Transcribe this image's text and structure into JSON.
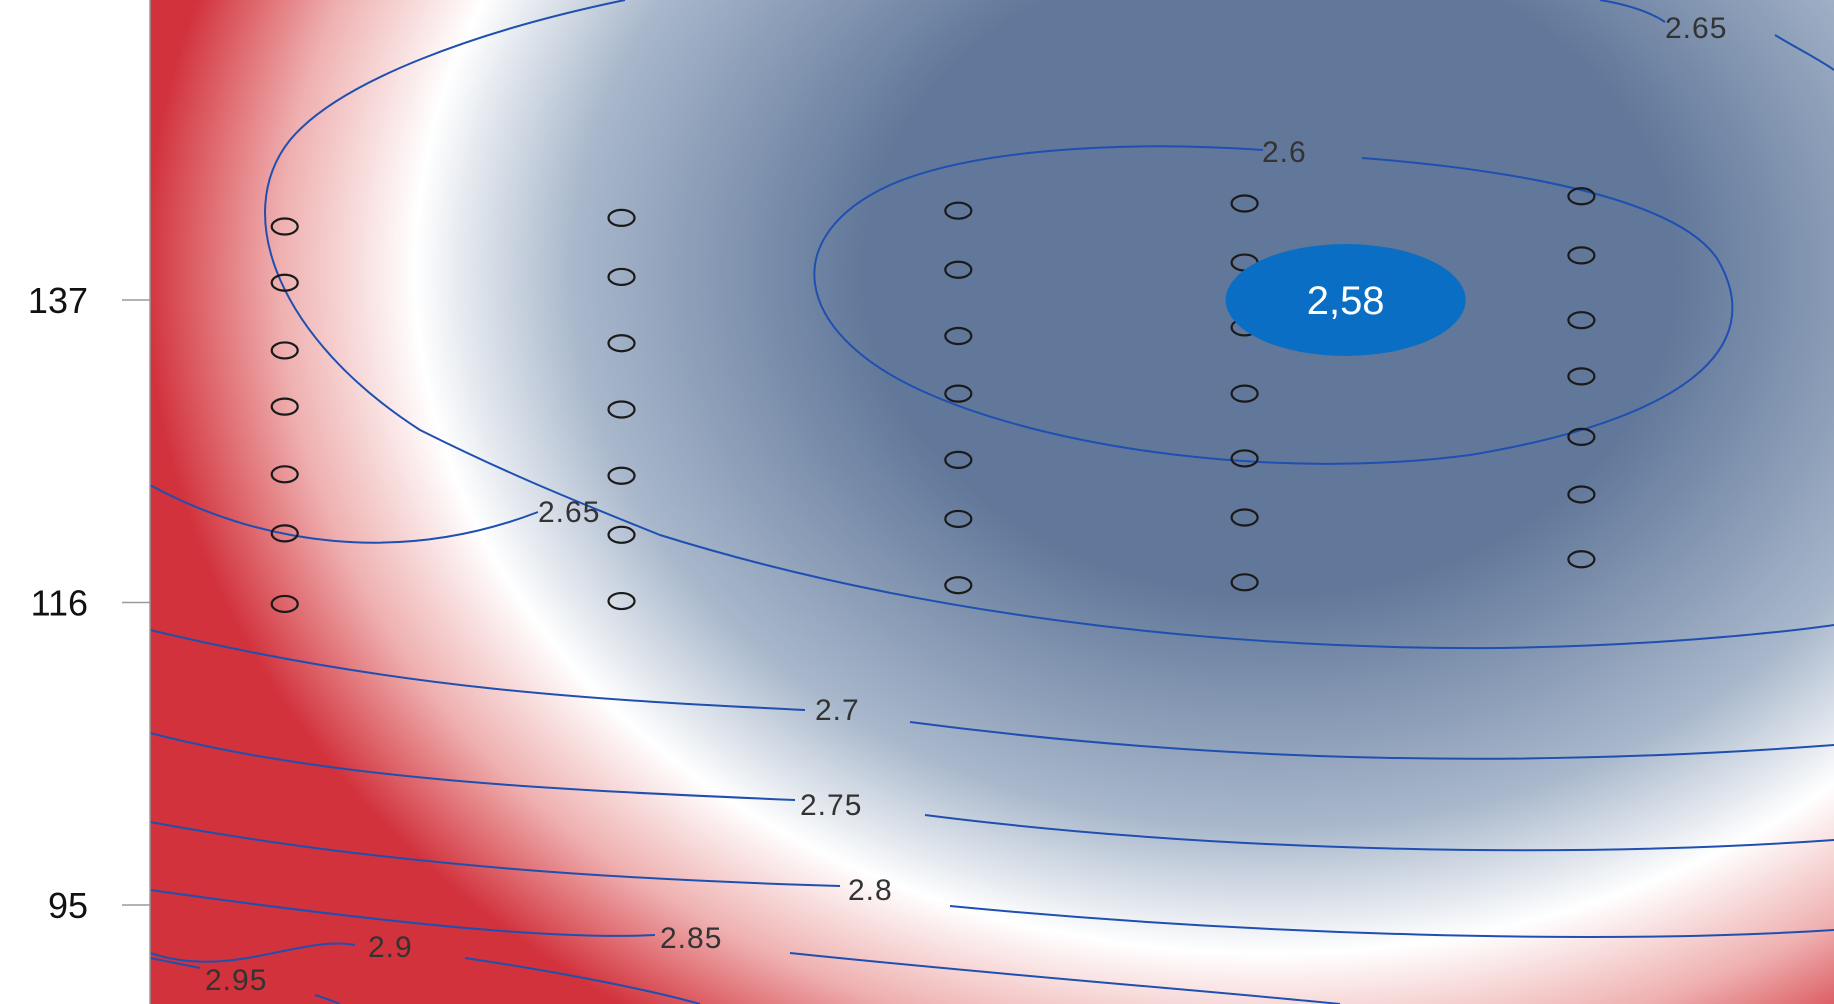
{
  "chart_data": {
    "type": "heatmap",
    "subtype": "contour",
    "title": "",
    "xlabel": "",
    "ylabel": "",
    "y_ticks": [
      137,
      116,
      95
    ],
    "ylim": [
      88,
      147
    ],
    "xlim": [
      0,
      10
    ],
    "grid": false,
    "legend": "none",
    "colors": {
      "low": "#62789a",
      "mid": "#ffffff",
      "high": "#d2323c",
      "contour_line": "#1f4fb0",
      "callout_fill": "#0a6fc4",
      "point_stroke": "#1a1a1a"
    },
    "contour_levels": [
      "2.6",
      "2.65",
      "2.65",
      "2.7",
      "2.75",
      "2.8",
      "2.85",
      "2.9",
      "2.95"
    ],
    "minimum_callout": {
      "label": "2,58",
      "x": 7.1,
      "y": 137
    },
    "design_points": [
      {
        "x": 0.8,
        "y": 142.1
      },
      {
        "x": 0.8,
        "y": 138.2
      },
      {
        "x": 0.8,
        "y": 133.5
      },
      {
        "x": 0.8,
        "y": 129.6
      },
      {
        "x": 0.8,
        "y": 124.9
      },
      {
        "x": 0.8,
        "y": 120.8
      },
      {
        "x": 0.8,
        "y": 115.9
      },
      {
        "x": 2.8,
        "y": 142.7
      },
      {
        "x": 2.8,
        "y": 138.6
      },
      {
        "x": 2.8,
        "y": 134.0
      },
      {
        "x": 2.8,
        "y": 129.4
      },
      {
        "x": 2.8,
        "y": 124.8
      },
      {
        "x": 2.8,
        "y": 120.7
      },
      {
        "x": 2.8,
        "y": 116.1
      },
      {
        "x": 4.8,
        "y": 143.2
      },
      {
        "x": 4.8,
        "y": 139.1
      },
      {
        "x": 4.8,
        "y": 134.5
      },
      {
        "x": 4.8,
        "y": 130.5
      },
      {
        "x": 4.8,
        "y": 125.9
      },
      {
        "x": 4.8,
        "y": 121.8
      },
      {
        "x": 4.8,
        "y": 117.2
      },
      {
        "x": 6.5,
        "y": 143.7
      },
      {
        "x": 6.5,
        "y": 139.6
      },
      {
        "x": 6.5,
        "y": 135.1
      },
      {
        "x": 6.5,
        "y": 130.5
      },
      {
        "x": 6.5,
        "y": 126.0
      },
      {
        "x": 6.5,
        "y": 121.9
      },
      {
        "x": 6.5,
        "y": 117.4
      },
      {
        "x": 8.5,
        "y": 144.2
      },
      {
        "x": 8.5,
        "y": 140.1
      },
      {
        "x": 8.5,
        "y": 135.6
      },
      {
        "x": 8.5,
        "y": 131.7
      },
      {
        "x": 8.5,
        "y": 127.5
      },
      {
        "x": 8.5,
        "y": 123.5
      },
      {
        "x": 8.5,
        "y": 119.0
      }
    ]
  }
}
